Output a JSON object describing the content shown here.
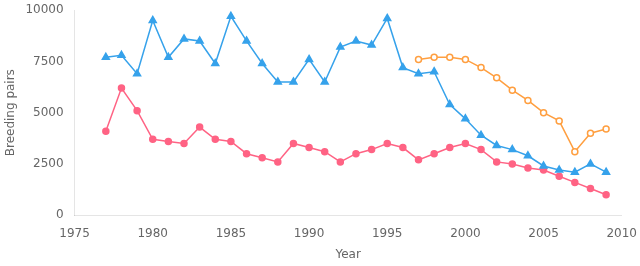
{
  "chart_data": {
    "type": "line",
    "xlabel": "Year",
    "ylabel": "Breeding pairs",
    "xlim": [
      1975,
      2010
    ],
    "xticks": [
      1975,
      1980,
      1985,
      1990,
      1995,
      2000,
      2005,
      2010
    ],
    "ylim": [
      0,
      10000
    ],
    "yticks": [
      0,
      2500,
      5000,
      7500,
      10000
    ],
    "grid": false,
    "series": [
      {
        "marker": "triangle",
        "x": [
          1977,
          1978,
          1979,
          1980,
          1981,
          1982,
          1983,
          1984,
          1985,
          1986,
          1987,
          1988,
          1989,
          1990,
          1991,
          1992,
          1993,
          1994,
          1995,
          1996,
          1997,
          1998,
          1999,
          2000,
          2001,
          2002,
          2003,
          2004,
          2005,
          2006,
          2007,
          2008,
          2009
        ],
        "values": [
          7700,
          7800,
          6900,
          9500,
          7700,
          8600,
          8500,
          7400,
          9700,
          8500,
          7400,
          6500,
          6500,
          7600,
          6500,
          8200,
          8500,
          8300,
          9600,
          7200,
          6900,
          7000,
          5400,
          4700,
          3900,
          3400,
          3200,
          2900,
          2400,
          2200,
          2100,
          2500,
          2100
        ]
      },
      {
        "marker": "circle",
        "x": [
          1977,
          1978,
          1979,
          1980,
          1981,
          1982,
          1983,
          1984,
          1985,
          1986,
          1987,
          1988,
          1989,
          1990,
          1991,
          1992,
          1993,
          1994,
          1995,
          1996,
          1997,
          1998,
          1999,
          2000,
          2001,
          2002,
          2003,
          2004,
          2005,
          2006,
          2007,
          2008,
          2009
        ],
        "values": [
          4100,
          6200,
          5100,
          3700,
          3600,
          3500,
          4300,
          3700,
          3600,
          3000,
          2800,
          2600,
          3500,
          3300,
          3100,
          2600,
          3000,
          3200,
          3500,
          3300,
          2700,
          3000,
          3300,
          3500,
          3200,
          2600,
          2500,
          2300,
          2200,
          1900,
          1600,
          1300,
          1000
        ]
      },
      {
        "marker": "open_circle",
        "x": [
          1997,
          1998,
          1999,
          2000,
          2001,
          2002,
          2003,
          2004,
          2005,
          2006,
          2007,
          2008,
          2009
        ],
        "values": [
          7600,
          7700,
          7700,
          7600,
          7200,
          6700,
          6100,
          5600,
          5000,
          4600,
          3100,
          4000,
          4200
        ]
      }
    ]
  }
}
